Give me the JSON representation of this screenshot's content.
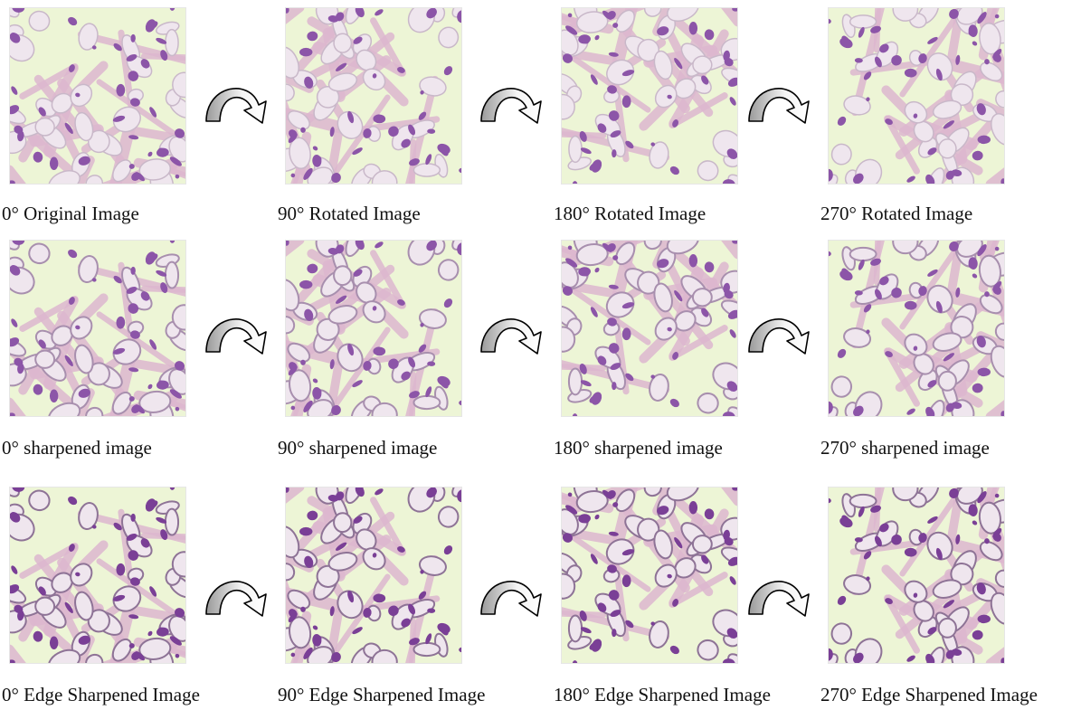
{
  "rows": [
    [
      "0° Original Image",
      "90° Rotated Image",
      "180° Rotated Image",
      "270° Rotated Image"
    ],
    [
      "0° sharpened image",
      "90° sharpened image",
      "180° sharpened image",
      "270° sharpened image"
    ],
    [
      "0° Edge Sharpened Image",
      "90° Edge Sharpened Image",
      "180° Edge Sharpened Image",
      "270° Edge Sharpened Image"
    ]
  ]
}
